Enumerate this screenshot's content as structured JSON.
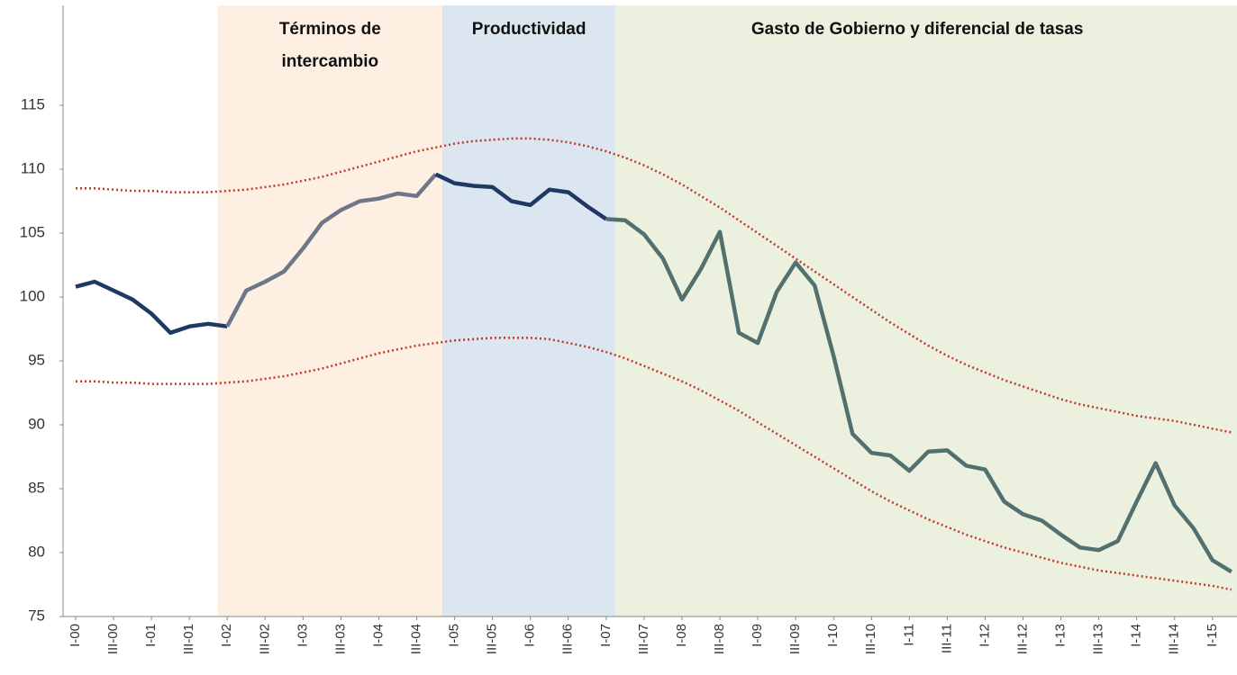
{
  "chart_data": {
    "type": "line",
    "regions": [
      {
        "label": [
          "Términos de",
          "intercambio"
        ],
        "color": "#fdf0e3"
      },
      {
        "label": [
          "Productividad"
        ],
        "color": "#dce6f1"
      },
      {
        "label": [
          "Gasto de Gobierno  y diferencial de tasas"
        ],
        "color": "#ebf1de"
      }
    ],
    "categories": [
      "I-00",
      null,
      "III-00",
      null,
      "I-01",
      null,
      "III-01",
      null,
      "I-02",
      null,
      "III-02",
      null,
      "I-03",
      null,
      "III-03",
      null,
      "I-04",
      null,
      "III-04",
      null,
      "I-05",
      null,
      "III-05",
      null,
      "I-06",
      null,
      "III-06",
      null,
      "I-07",
      null,
      "III-07",
      null,
      "I-08",
      null,
      "III-08",
      null,
      "I-09",
      null,
      "III-09",
      null,
      "I-10",
      null,
      "III-10",
      null,
      "I-11",
      null,
      "III-11",
      null,
      "I-12",
      null,
      "III-12",
      null,
      "I-13",
      null,
      "III-13",
      null,
      "I-14",
      null,
      "III-14",
      null,
      "I-15",
      null
    ],
    "series": [
      {
        "values": [
          100.8,
          101.2,
          100.5,
          99.8,
          98.7,
          97.2,
          97.7,
          97.9,
          97.7,
          100.5,
          101.2,
          102.0,
          103.8,
          105.8,
          106.8,
          107.5,
          107.7,
          108.1,
          107.9,
          109.6,
          108.9,
          108.7,
          108.6,
          107.5,
          107.2,
          108.4,
          108.2,
          107.1,
          106.1,
          106.0,
          104.9,
          103.0,
          99.8,
          102.2,
          105.1,
          97.2,
          96.4,
          100.4,
          102.7,
          100.9,
          95.4,
          89.3,
          87.8,
          87.6,
          86.4,
          87.9,
          88.0,
          86.8,
          86.5,
          84.0,
          83.0,
          82.5,
          81.4,
          80.4,
          80.2,
          80.9,
          84.0,
          87.0,
          83.7,
          81.9,
          79.4,
          78.5
        ],
        "colors": [
          {
            "until": 8,
            "color": "#1f3864"
          },
          {
            "until": 19,
            "color": "#6e7787"
          },
          {
            "until": 28,
            "color": "#1f3864"
          },
          {
            "until": 61,
            "color": "#52706f"
          }
        ],
        "style": "solid"
      },
      {
        "values": [
          108.5,
          108.5,
          108.4,
          108.3,
          108.3,
          108.2,
          108.2,
          108.2,
          108.3,
          108.4,
          108.6,
          108.8,
          109.1,
          109.4,
          109.8,
          110.2,
          110.6,
          111.0,
          111.4,
          111.7,
          112.0,
          112.2,
          112.3,
          112.4,
          112.4,
          112.3,
          112.1,
          111.8,
          111.4,
          110.9,
          110.3,
          109.6,
          108.8,
          107.9,
          107.0,
          106.0,
          105.0,
          104.0,
          103.0,
          102.0,
          101.0,
          100.0,
          99.0,
          98.0,
          97.1,
          96.2,
          95.4,
          94.7,
          94.1,
          93.5,
          93.0,
          92.5,
          92.0,
          91.6,
          91.3,
          91.0,
          90.7,
          90.5,
          90.3,
          90.0,
          89.7,
          89.4
        ],
        "colors": [
          {
            "until": 61,
            "color": "#c0392b"
          }
        ],
        "style": "dotted"
      },
      {
        "values": [
          93.4,
          93.4,
          93.3,
          93.3,
          93.2,
          93.2,
          93.2,
          93.2,
          93.3,
          93.4,
          93.6,
          93.8,
          94.1,
          94.4,
          94.8,
          95.2,
          95.6,
          95.9,
          96.2,
          96.4,
          96.6,
          96.7,
          96.8,
          96.8,
          96.8,
          96.7,
          96.4,
          96.1,
          95.7,
          95.2,
          94.6,
          94.0,
          93.4,
          92.7,
          91.9,
          91.1,
          90.2,
          89.3,
          88.4,
          87.5,
          86.6,
          85.7,
          84.8,
          84.0,
          83.3,
          82.6,
          82.0,
          81.4,
          80.9,
          80.4,
          80.0,
          79.6,
          79.2,
          78.9,
          78.6,
          78.4,
          78.2,
          78.0,
          77.8,
          77.6,
          77.4,
          77.1
        ],
        "colors": [
          {
            "until": 61,
            "color": "#c0392b"
          }
        ],
        "style": "dotted"
      }
    ],
    "ylim": [
      75,
      115
    ],
    "yticks": [
      75,
      80,
      85,
      90,
      95,
      100,
      105,
      110,
      115
    ],
    "grid": false
  }
}
